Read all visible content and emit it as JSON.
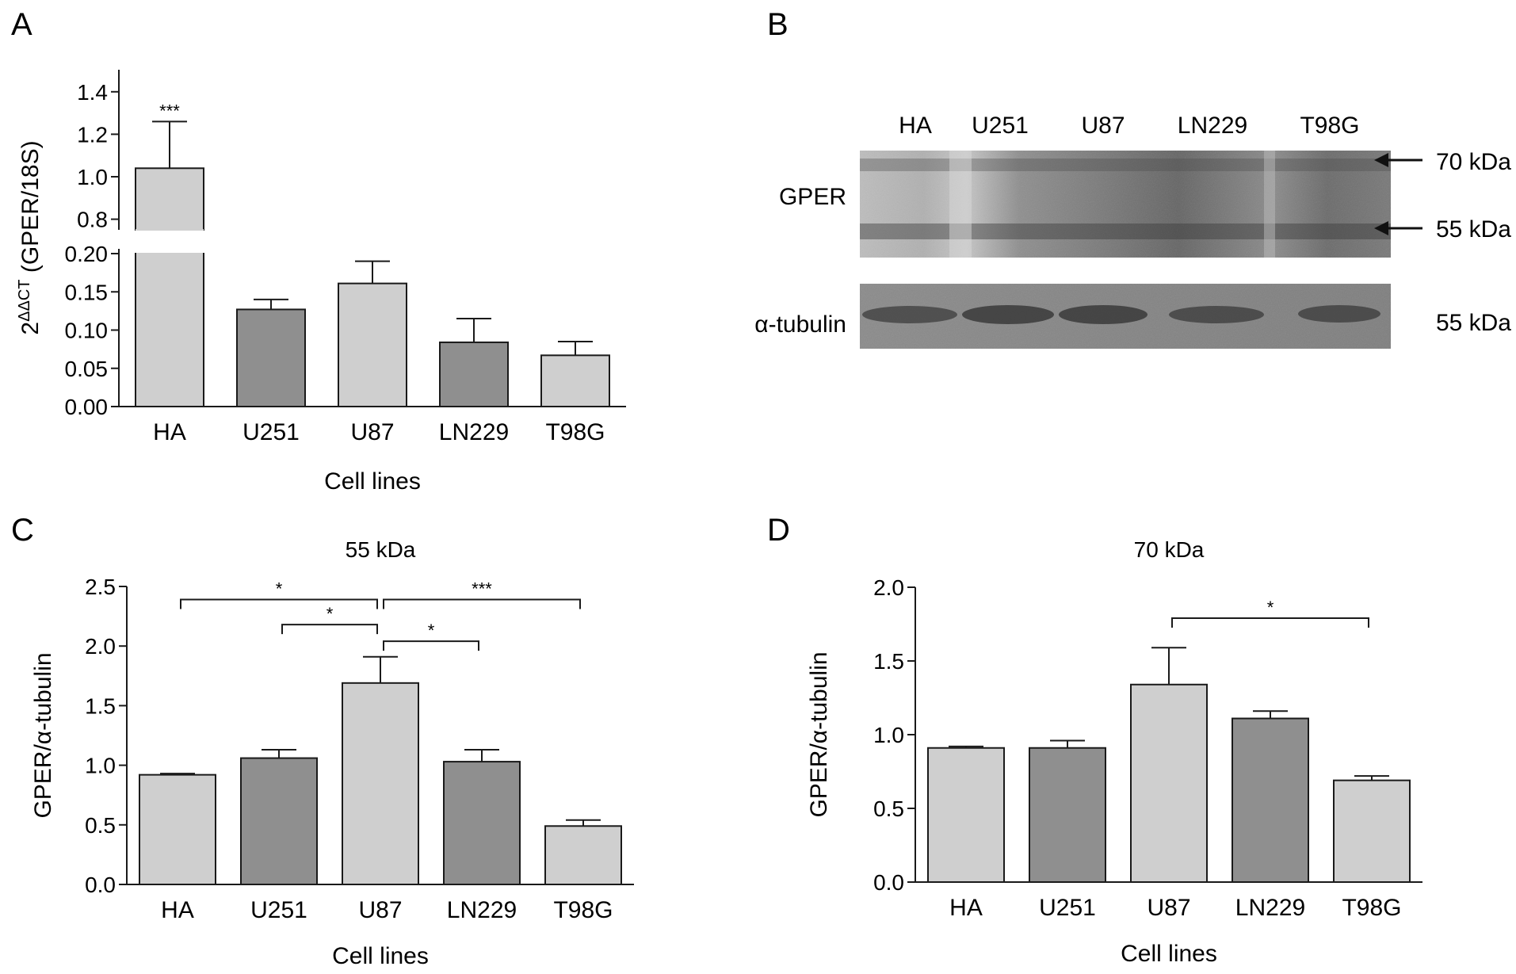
{
  "chart_data": [
    {
      "panel": "A",
      "type": "bar",
      "categories": [
        "HA",
        "U251",
        "U87",
        "LN229",
        "T98G"
      ],
      "values": [
        1.04,
        0.127,
        0.161,
        0.084,
        0.067
      ],
      "errors": [
        0.22,
        0.013,
        0.029,
        0.031,
        0.018
      ],
      "bar_colors": [
        "#cfcfcf",
        "#8f8f8f",
        "#cfcfcf",
        "#8f8f8f",
        "#cfcfcf"
      ],
      "xlabel": "Cell lines",
      "ylabel_base": "2",
      "ylabel_sup": "ΔΔCT",
      "ylabel_rest": " (GPER/18S)",
      "ylim": [
        0,
        1.5
      ],
      "axis_break": [
        0.2,
        0.75
      ],
      "yticks": [
        "0.00",
        "0.05",
        "0.10",
        "0.15",
        "0.20",
        "0.8",
        "1.0",
        "1.2",
        "1.4"
      ],
      "annotations": [
        {
          "category": "HA",
          "text": "***"
        }
      ]
    },
    {
      "panel": "C",
      "type": "bar",
      "title": "55 kDa",
      "categories": [
        "HA",
        "U251",
        "U87",
        "LN229",
        "T98G"
      ],
      "values": [
        0.92,
        1.06,
        1.69,
        1.03,
        0.49
      ],
      "errors": [
        0.01,
        0.07,
        0.22,
        0.1,
        0.05
      ],
      "bar_colors": [
        "#cfcfcf",
        "#8f8f8f",
        "#cfcfcf",
        "#8f8f8f",
        "#cfcfcf"
      ],
      "xlabel": "Cell lines",
      "ylabel": "GPER/α-tubulin",
      "ylim": [
        0,
        2.5
      ],
      "yticks": [
        "0.0",
        "0.5",
        "1.0",
        "1.5",
        "2.0",
        "2.5"
      ],
      "comparisons": [
        {
          "from": "HA",
          "to": "U87",
          "y": 2.39,
          "text": "*"
        },
        {
          "from": "U87",
          "to": "T98G",
          "y": 2.39,
          "text": "***"
        },
        {
          "from": "U251",
          "to": "U87",
          "y": 2.18,
          "text": "*"
        },
        {
          "from": "U87",
          "to": "LN229",
          "y": 2.04,
          "text": "*"
        }
      ]
    },
    {
      "panel": "D",
      "type": "bar",
      "title": "70 kDa",
      "categories": [
        "HA",
        "U251",
        "U87",
        "LN229",
        "T98G"
      ],
      "values": [
        0.91,
        0.91,
        1.34,
        1.11,
        0.69
      ],
      "errors": [
        0.01,
        0.05,
        0.25,
        0.05,
        0.03
      ],
      "bar_colors": [
        "#cfcfcf",
        "#8f8f8f",
        "#cfcfcf",
        "#8f8f8f",
        "#cfcfcf"
      ],
      "xlabel": "Cell lines",
      "ylabel": "GPER/α-tubulin",
      "ylim": [
        0,
        2.0
      ],
      "yticks": [
        "0.0",
        "0.5",
        "1.0",
        "1.5",
        "2.0"
      ],
      "comparisons": [
        {
          "from": "U87",
          "to": "T98G",
          "y": 1.79,
          "text": "*"
        }
      ]
    }
  ],
  "blot": {
    "panel": "B",
    "lanes": [
      "HA",
      "U251",
      "U87",
      "LN229",
      "T98G"
    ],
    "rows": [
      {
        "label": "GPER",
        "markers": [
          "70 kDa",
          "55 kDa"
        ]
      },
      {
        "label": "α-tubulin",
        "markers": [
          "55 kDa"
        ]
      }
    ]
  }
}
